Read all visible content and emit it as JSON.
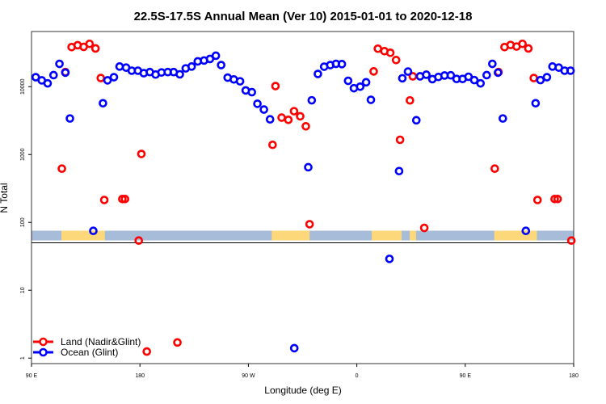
{
  "chart_data": {
    "type": "scatter",
    "title": "22.5S-17.5S Annual Mean (Ver 10)   2015-01-01 to 2020-12-18",
    "xlabel": "Longitude (deg E)",
    "ylabel": "N Total",
    "x_unwrapped_lon_range": [
      90,
      540
    ],
    "y_scale": "log",
    "ylim": [
      0.83,
      65000
    ],
    "grid": false,
    "legend_placement": "bottom-left",
    "x_ticks": [
      {
        "value": 90,
        "label": "90 E"
      },
      {
        "value": 180,
        "label": "180"
      },
      {
        "value": 270,
        "label": "90 W"
      },
      {
        "value": 360,
        "label": "0"
      },
      {
        "value": 450,
        "label": "90 E"
      },
      {
        "value": 540,
        "label": "180"
      }
    ],
    "y_ticks": [
      {
        "value": 1,
        "label": "1"
      },
      {
        "value": 10,
        "label": "10"
      },
      {
        "value": 100,
        "label": "100"
      },
      {
        "value": 1000,
        "label": "1000"
      },
      {
        "value": 10000,
        "label": "10000"
      }
    ],
    "panel_divider_value": 50,
    "land_strip": {
      "ocean_color": "#a6bcd9",
      "land_color": "#fcd87a",
      "land_lon_ranges": [
        [
          114.8,
          150.9
        ],
        [
          289.4,
          320.8
        ],
        [
          372.4,
          397.2
        ],
        [
          403.9,
          409.2
        ],
        [
          474.1,
          509.5
        ]
      ]
    },
    "series": [
      {
        "name": "Land (Nadir&Glint)",
        "color": "#ff0000",
        "points": [
          [
            115.2,
            620
          ],
          [
            118.1,
            16400
          ],
          [
            123.3,
            38300
          ],
          [
            128.3,
            40800
          ],
          [
            133.3,
            38600
          ],
          [
            138.2,
            42800
          ],
          [
            143.1,
            36600
          ],
          [
            147.5,
            13400
          ],
          [
            150.4,
            214
          ],
          [
            165.4,
            221
          ],
          [
            167.6,
            221
          ],
          [
            179.0,
            54
          ],
          [
            181.2,
            1020
          ],
          [
            185.7,
            1.25
          ],
          [
            211.1,
            1.7
          ],
          [
            290.1,
            1390
          ],
          [
            292.5,
            10200
          ],
          [
            297.6,
            3500
          ],
          [
            303.2,
            3250
          ],
          [
            307.9,
            4350
          ],
          [
            313.0,
            3660
          ],
          [
            317.7,
            2610
          ],
          [
            320.8,
            94
          ],
          [
            374.0,
            16800
          ],
          [
            377.5,
            36300
          ],
          [
            382.9,
            33400
          ],
          [
            387.8,
            31600
          ],
          [
            392.6,
            24700
          ],
          [
            395.9,
            1650
          ],
          [
            404.1,
            6280
          ],
          [
            406.5,
            14200
          ],
          [
            416.0,
            83
          ],
          [
            474.5,
            620
          ],
          [
            477.6,
            16400
          ],
          [
            482.6,
            38300
          ],
          [
            487.6,
            41200
          ],
          [
            492.6,
            39000
          ],
          [
            497.5,
            42800
          ],
          [
            502.4,
            36600
          ],
          [
            506.9,
            13400
          ],
          [
            510.0,
            214
          ],
          [
            524.2,
            221
          ],
          [
            526.7,
            221
          ],
          [
            538.1,
            54
          ]
        ]
      },
      {
        "name": "Ocean (Glint)",
        "color": "#0000ff",
        "points": [
          [
            93.5,
            13800
          ],
          [
            98.5,
            12400
          ],
          [
            103.4,
            11200
          ],
          [
            108.3,
            14800
          ],
          [
            113.2,
            21700
          ],
          [
            118.1,
            16100
          ],
          [
            121.9,
            3400
          ],
          [
            141.3,
            75
          ],
          [
            149.3,
            5700
          ],
          [
            153.1,
            12400
          ],
          [
            158.4,
            13800
          ],
          [
            163.1,
            19800
          ],
          [
            168.5,
            19100
          ],
          [
            173.2,
            17200
          ],
          [
            178.3,
            17200
          ],
          [
            183.2,
            15800
          ],
          [
            188.2,
            16400
          ],
          [
            193.0,
            15100
          ],
          [
            197.9,
            16200
          ],
          [
            203.1,
            16400
          ],
          [
            208.0,
            16400
          ],
          [
            213.1,
            15200
          ],
          [
            218.0,
            18600
          ],
          [
            222.9,
            19800
          ],
          [
            228.0,
            23600
          ],
          [
            233.2,
            24300
          ],
          [
            238.1,
            25600
          ],
          [
            243.0,
            28600
          ],
          [
            247.4,
            20800
          ],
          [
            252.8,
            13600
          ],
          [
            257.9,
            12800
          ],
          [
            263.1,
            12000
          ],
          [
            267.8,
            8800
          ],
          [
            272.9,
            8300
          ],
          [
            277.5,
            5600
          ],
          [
            282.9,
            4600
          ],
          [
            288.0,
            3300
          ],
          [
            308.1,
            1.4
          ],
          [
            319.7,
            650
          ],
          [
            322.6,
            6300
          ],
          [
            327.7,
            15400
          ],
          [
            332.9,
            19700
          ],
          [
            338.0,
            20800
          ],
          [
            342.7,
            21700
          ],
          [
            347.6,
            21500
          ],
          [
            352.8,
            12200
          ],
          [
            357.6,
            9500
          ],
          [
            362.8,
            10000
          ],
          [
            367.7,
            11600
          ],
          [
            371.7,
            6400
          ],
          [
            387.1,
            29
          ],
          [
            395.1,
            570
          ],
          [
            397.8,
            13300
          ],
          [
            402.5,
            16700
          ],
          [
            409.4,
            3200
          ],
          [
            412.5,
            14200
          ],
          [
            417.7,
            15000
          ],
          [
            422.7,
            12900
          ],
          [
            427.7,
            13900
          ],
          [
            432.8,
            14600
          ],
          [
            438.0,
            14700
          ],
          [
            442.8,
            13000
          ],
          [
            447.8,
            13000
          ],
          [
            452.7,
            14000
          ],
          [
            457.5,
            12500
          ],
          [
            462.7,
            11200
          ],
          [
            467.8,
            14800
          ],
          [
            472.5,
            21700
          ],
          [
            477.2,
            16100
          ],
          [
            481.2,
            3400
          ],
          [
            500.3,
            75
          ],
          [
            508.4,
            5700
          ],
          [
            512.4,
            12500
          ],
          [
            517.8,
            13800
          ],
          [
            522.4,
            19800
          ],
          [
            527.6,
            19100
          ],
          [
            532.5,
            17200
          ],
          [
            537.4,
            17200
          ]
        ]
      }
    ]
  }
}
